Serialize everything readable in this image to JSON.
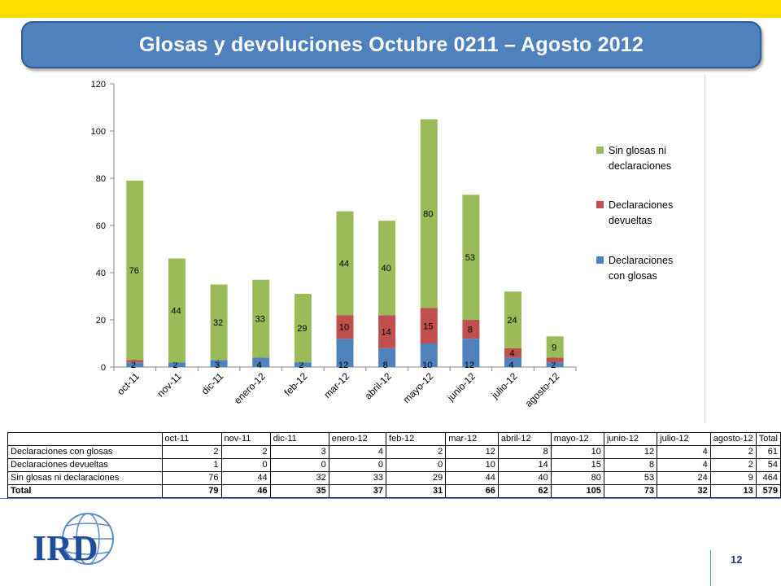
{
  "slide": {
    "title": "Glosas y devoluciones Octubre 0211 – Agosto 2012",
    "page_number": "12",
    "logo_text": "IRD"
  },
  "colors": {
    "banner": "#ffde00",
    "title_bg": "#4f81bd",
    "con_glosas": "#4f81bd",
    "devueltas": "#c0504d",
    "sin_glosas": "#9bbb59"
  },
  "chart_data": {
    "type": "bar",
    "stacked": true,
    "categories": [
      "oct-11",
      "nov-11",
      "dic-11",
      "enero-12",
      "feb-12",
      "mar-12",
      "abril-12",
      "mayo-12",
      "junio-12",
      "julio-12",
      "agosto-12"
    ],
    "series": [
      {
        "name": "Declaraciones con glosas",
        "values": [
          2,
          2,
          3,
          4,
          2,
          12,
          8,
          10,
          12,
          4,
          2
        ],
        "color": "#4f81bd"
      },
      {
        "name": "Declaraciones devueltas",
        "values": [
          1,
          0,
          0,
          0,
          0,
          10,
          14,
          15,
          8,
          4,
          2
        ],
        "color": "#c0504d"
      },
      {
        "name": "Sin glosas ni declaraciones",
        "values": [
          76,
          44,
          32,
          33,
          29,
          44,
          40,
          80,
          53,
          24,
          9
        ],
        "color": "#9bbb59"
      }
    ],
    "legend_order": [
      "Sin glosas ni declaraciones",
      "Declaraciones devueltas",
      "Declaraciones con glosas"
    ],
    "legend_labels": [
      [
        "Sin glosas ni",
        "declaraciones"
      ],
      [
        "Declaraciones",
        "devueltas"
      ],
      [
        "Declaraciones",
        "con glosas"
      ]
    ],
    "ylim": [
      0,
      120
    ],
    "yticks": [
      0,
      20,
      40,
      60,
      80,
      100,
      120
    ],
    "legend_position": "right",
    "grid": false
  },
  "table": {
    "headers": [
      "oct-11",
      "nov-11",
      "dic-11",
      "enero-12",
      "feb-12",
      "mar-12",
      "abril-12",
      "mayo-12",
      "junio-12",
      "julio-12",
      "agosto-12",
      "Total"
    ],
    "rows": [
      {
        "label": "Declaraciones con glosas",
        "values": [
          "2",
          "2",
          "3",
          "4",
          "2",
          "12",
          "8",
          "10",
          "12",
          "4",
          "2",
          "61"
        ]
      },
      {
        "label": "Declaraciones devueltas",
        "values": [
          "1",
          "0",
          "0",
          "0",
          "0",
          "10",
          "14",
          "15",
          "8",
          "4",
          "2",
          "54"
        ]
      },
      {
        "label": "Sin glosas ni declaraciones",
        "values": [
          "76",
          "44",
          "32",
          "33",
          "29",
          "44",
          "40",
          "80",
          "53",
          "24",
          "9",
          "464"
        ]
      },
      {
        "label": "Total",
        "values": [
          "79",
          "46",
          "35",
          "37",
          "31",
          "66",
          "62",
          "105",
          "73",
          "32",
          "13",
          "579"
        ]
      }
    ]
  }
}
